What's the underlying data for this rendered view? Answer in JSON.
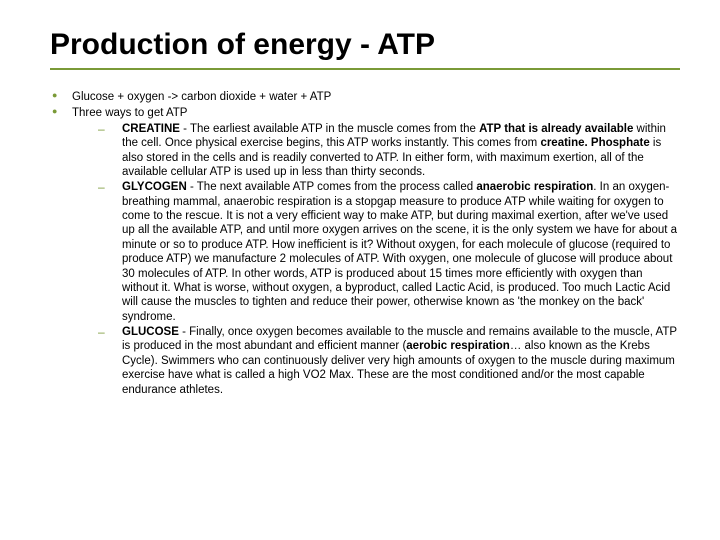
{
  "title": "Production of energy - ATP",
  "colors": {
    "accent": "#7a9a37",
    "text": "#000000",
    "background": "#ffffff"
  },
  "typography": {
    "title_fontsize": 30,
    "body_fontsize": 11.5,
    "font_family": "Arial"
  },
  "bullets": [
    {
      "text": "Glucose + oxygen -> carbon dioxide + water + ATP"
    },
    {
      "text": "Three ways to get ATP",
      "children": [
        {
          "label": "CREATINE",
          "html": "<b>CREATINE</b> - The earliest available ATP in the muscle comes from the <b>ATP that is already available</b> within the cell. Once physical exercise begins, this ATP works instantly. This comes from <b>creatine. Phosphate</b> is also stored in the cells and is readily converted to ATP. In either form, with maximum exertion, all of the available cellular ATP is used up in less than thirty seconds."
        },
        {
          "label": "GLYCOGEN",
          "html": "<b>GLYCOGEN</b> - The next available ATP comes from the process called <b>anaerobic respiration</b>. In an oxygen-breathing mammal, anaerobic respiration is a stopgap measure to produce ATP while waiting for oxygen to come to the rescue. It is not a very efficient way to make ATP, but during maximal exertion, after we've used up all the available ATP, and until more oxygen arrives on the scene, it is the only system we have for about a minute or so to produce ATP. How inefficient is it? Without oxygen, for each molecule of glucose (required to produce ATP) we manufacture 2 molecules of ATP. With oxygen, one molecule of glucose will produce about 30 molecules of ATP. In other words, ATP is produced about 15 times more efficiently with oxygen than without it. What is worse, without oxygen, a byproduct, called Lactic Acid, is produced. Too much Lactic Acid will cause the muscles to tighten and reduce their power, otherwise known as 'the monkey on the back' syndrome."
        },
        {
          "label": "GLUCOSE",
          "html": "<b>GLUCOSE</b> - Finally, once oxygen becomes available to the muscle and remains available to the muscle, ATP is produced in the most abundant and efficient manner (<b>aerobic respiration</b>… also known as the Krebs Cycle). Swimmers who can continuously deliver very high amounts of oxygen to the muscle during maximum exercise have what is called a high VO2 Max. These are the most conditioned and/or the most capable endurance athletes."
        }
      ]
    }
  ]
}
